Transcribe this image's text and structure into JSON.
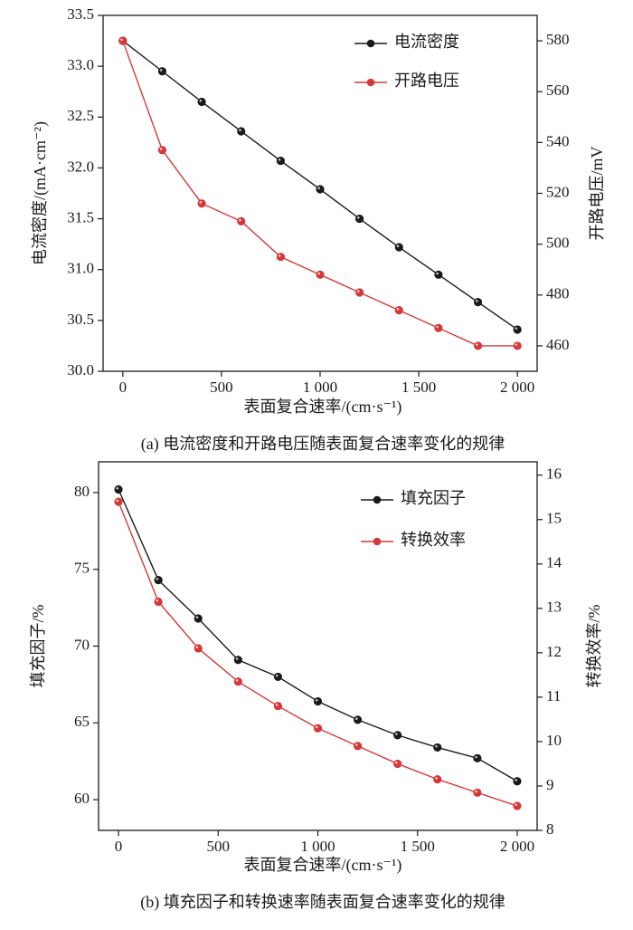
{
  "chart_data": [
    {
      "type": "line",
      "caption": "(a) 电流密度和开路电压随表面复合速率变化的规律",
      "xlabel": "表面复合速率/(cm·s⁻¹)",
      "ylabel": "电流密度/(mA·cm⁻²)",
      "y2label": "开路电压/mV",
      "x": [
        0,
        200,
        400,
        600,
        800,
        1000,
        1200,
        1400,
        1600,
        1800,
        2000
      ],
      "xticks": [
        0,
        500,
        1000,
        1500,
        2000
      ],
      "xtick_labels": [
        "0",
        "500",
        "1 000",
        "1 500",
        "2 000"
      ],
      "xlim": [
        -100,
        2100
      ],
      "ylim": [
        30.0,
        33.5
      ],
      "yticks": [
        30.0,
        30.5,
        31.0,
        31.5,
        32.0,
        32.5,
        33.0,
        33.5
      ],
      "ytick_labels": [
        "30.0",
        "30.5",
        "31.0",
        "31.5",
        "32.0",
        "32.5",
        "33.0",
        "33.5"
      ],
      "y2lim": [
        450,
        590
      ],
      "y2ticks": [
        460,
        480,
        500,
        520,
        540,
        560,
        580
      ],
      "y2tick_labels": [
        "460",
        "480",
        "500",
        "520",
        "540",
        "560",
        "580"
      ],
      "legend_position": "top-right",
      "grid": false,
      "series": [
        {
          "name": "电流密度",
          "axis": "left",
          "color": "#1a1a1a",
          "values": [
            33.25,
            32.95,
            32.65,
            32.36,
            32.07,
            31.79,
            31.5,
            31.22,
            30.95,
            30.68,
            30.41
          ]
        },
        {
          "name": "开路电压",
          "axis": "right",
          "color": "#d63838",
          "values": [
            580,
            537,
            516,
            509,
            495,
            488,
            481,
            474,
            467,
            460,
            460
          ]
        }
      ]
    },
    {
      "type": "line",
      "caption": "(b) 填充因子和转换速率随表面复合速率变化的规律",
      "xlabel": "表面复合速率/(cm·s⁻¹)",
      "ylabel": "填充因子/%",
      "y2label": "转换效率/%",
      "x": [
        0,
        200,
        400,
        600,
        800,
        1000,
        1200,
        1400,
        1600,
        1800,
        2000
      ],
      "xticks": [
        0,
        500,
        1000,
        1500,
        2000
      ],
      "xtick_labels": [
        "0",
        "500",
        "1 000",
        "1 500",
        "2 000"
      ],
      "xlim": [
        -100,
        2100
      ],
      "ylim": [
        58.0,
        82.0
      ],
      "yticks": [
        60,
        65,
        70,
        75,
        80
      ],
      "ytick_labels": [
        "60",
        "65",
        "70",
        "75",
        "80"
      ],
      "y2lim": [
        8.0,
        16.3
      ],
      "y2ticks": [
        8,
        9,
        10,
        11,
        12,
        13,
        14,
        15,
        16
      ],
      "y2tick_labels": [
        "8",
        "9",
        "10",
        "11",
        "12",
        "13",
        "14",
        "15",
        "16"
      ],
      "legend_position": "top-right",
      "grid": false,
      "series": [
        {
          "name": "填充因子",
          "axis": "left",
          "color": "#1a1a1a",
          "values": [
            80.2,
            74.3,
            71.8,
            69.1,
            68.0,
            66.4,
            65.2,
            64.2,
            63.4,
            62.7,
            61.2
          ]
        },
        {
          "name": "转换效率",
          "axis": "right",
          "color": "#d63838",
          "values": [
            15.4,
            13.15,
            12.1,
            11.35,
            10.8,
            10.3,
            9.9,
            9.5,
            9.15,
            8.85,
            8.55
          ]
        }
      ]
    }
  ]
}
